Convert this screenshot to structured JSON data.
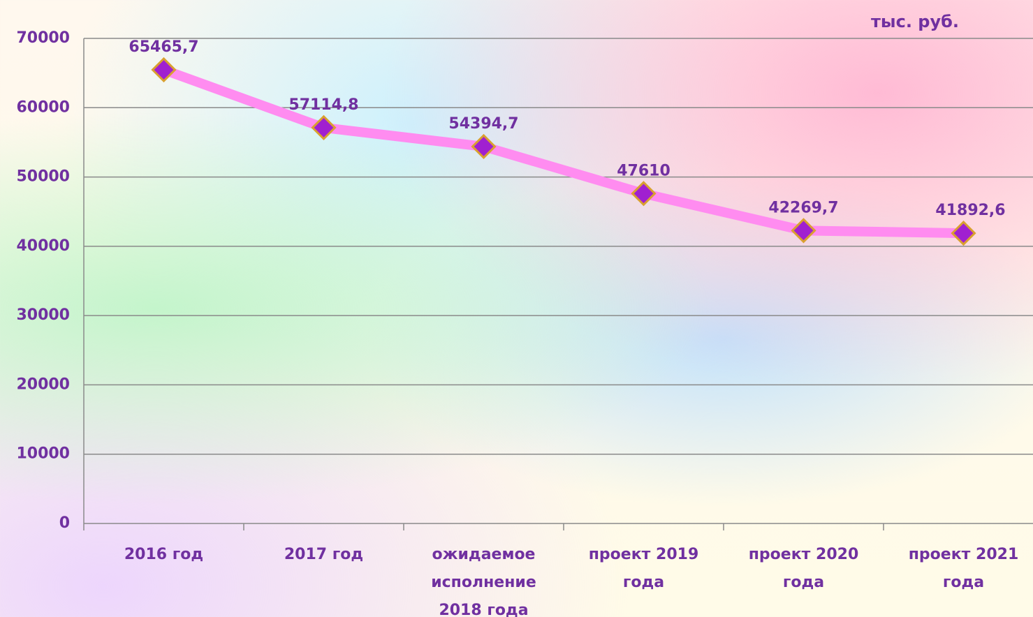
{
  "chart_data": {
    "type": "line",
    "unit_label": "тыс. руб.",
    "categories": [
      "2016 год",
      "2017 год",
      "ожидаемое исполнение 2018 года",
      "проект 2019 года",
      "проект 2020 года",
      "проект 2021 года"
    ],
    "series": [
      {
        "color": "#ff8cf0",
        "marker_color": "#a020d0",
        "values": [
          65465.7,
          57114.8,
          54394.7,
          47610,
          42269.7,
          41892.6
        ],
        "value_labels": [
          "65465,7",
          "57114,8",
          "54394,7",
          "47610",
          "42269,7",
          "41892,6"
        ]
      }
    ],
    "ylim": [
      0,
      70000
    ],
    "yticks": [
      0,
      10000,
      20000,
      30000,
      40000,
      50000,
      60000,
      70000
    ],
    "grid": true
  }
}
